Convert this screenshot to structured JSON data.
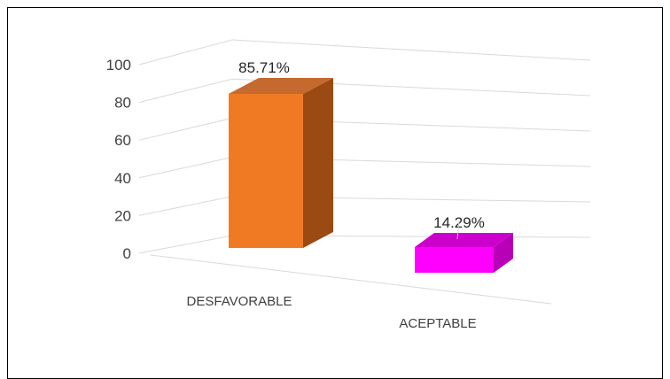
{
  "chart_data": {
    "type": "bar",
    "style": "3d-column",
    "categories": [
      "DESFAVORABLE",
      "ACEPTABLE"
    ],
    "values": [
      85.71,
      14.29
    ],
    "data_labels": [
      "85.71%",
      "14.29%"
    ],
    "y_ticks": [
      "0",
      "20",
      "40",
      "60",
      "80",
      "100"
    ],
    "ylim": [
      0,
      100
    ],
    "grid": true,
    "legend": "none",
    "colors": {
      "DESFAVORABLE": {
        "front": "#f07a24",
        "side": "#9a4a12",
        "top": "#c46a2e"
      },
      "ACEPTABLE": {
        "front": "#ff00ff",
        "side": "#b800b8",
        "top": "#cc00cc"
      }
    },
    "gridline_color": "#d9d9d9"
  }
}
